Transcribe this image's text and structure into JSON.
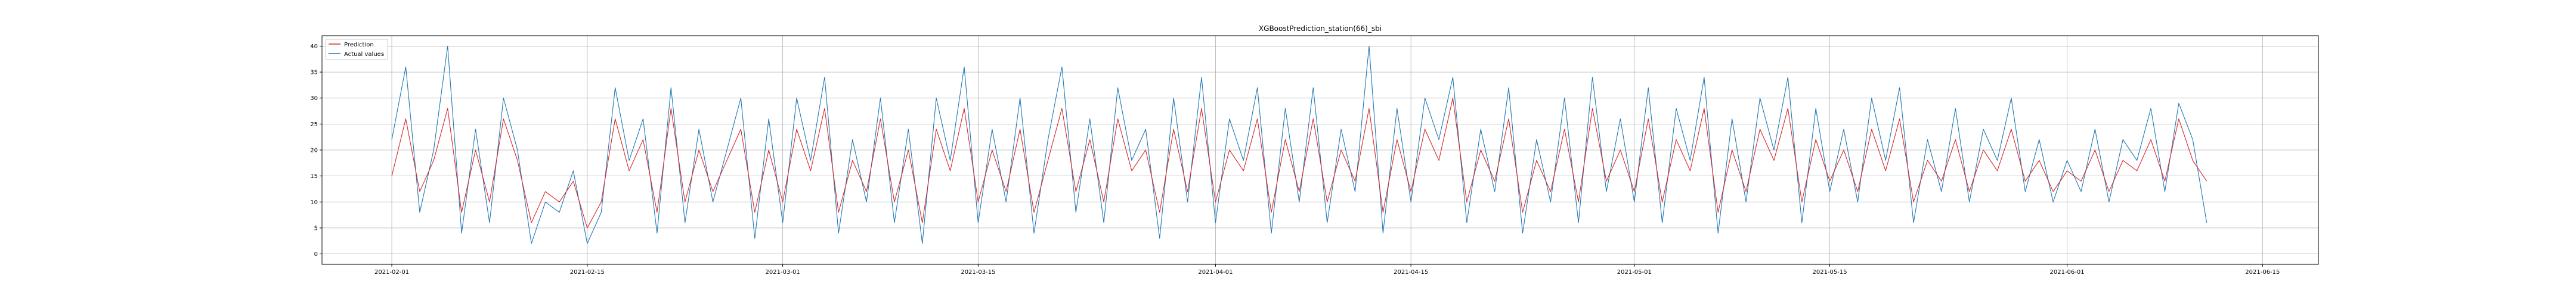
{
  "chart_data": {
    "type": "line",
    "title": "XGBoostPrediction_station(66)_sbi",
    "xlabel": "",
    "ylabel": "",
    "xlim": [
      "2021-01-27",
      "2021-06-19"
    ],
    "ylim": [
      -2,
      42
    ],
    "grid": true,
    "legend_position": "top-left",
    "x_ticks": [
      "2021-02-01",
      "2021-02-15",
      "2021-03-01",
      "2021-03-15",
      "2021-04-01",
      "2021-04-15",
      "2021-05-01",
      "2021-05-15",
      "2021-06-01",
      "2021-06-15"
    ],
    "y_ticks": [
      0,
      5,
      10,
      15,
      20,
      25,
      30,
      35,
      40
    ],
    "series": [
      {
        "name": "Prediction",
        "color": "#d62728",
        "x": [
          "2021-02-01",
          "2021-02-02",
          "2021-02-03",
          "2021-02-04",
          "2021-02-05",
          "2021-02-06",
          "2021-02-07",
          "2021-02-08",
          "2021-02-09",
          "2021-02-10",
          "2021-02-11",
          "2021-02-12",
          "2021-02-13",
          "2021-02-14",
          "2021-02-15",
          "2021-02-16",
          "2021-02-17",
          "2021-02-18",
          "2021-02-19",
          "2021-02-20",
          "2021-02-21",
          "2021-02-22",
          "2021-02-23",
          "2021-02-24",
          "2021-02-25",
          "2021-02-26",
          "2021-02-27",
          "2021-02-28",
          "2021-03-01",
          "2021-03-02",
          "2021-03-03",
          "2021-03-04",
          "2021-03-05",
          "2021-03-06",
          "2021-03-07",
          "2021-03-08",
          "2021-03-09",
          "2021-03-10",
          "2021-03-11",
          "2021-03-12",
          "2021-03-13",
          "2021-03-14",
          "2021-03-15",
          "2021-03-16",
          "2021-03-17",
          "2021-03-18",
          "2021-03-19",
          "2021-03-20",
          "2021-03-21",
          "2021-03-22",
          "2021-03-23",
          "2021-03-24",
          "2021-03-25",
          "2021-03-26",
          "2021-03-27",
          "2021-03-28",
          "2021-03-29",
          "2021-03-30",
          "2021-03-31",
          "2021-04-01",
          "2021-04-02",
          "2021-04-03",
          "2021-04-04",
          "2021-04-05",
          "2021-04-06",
          "2021-04-07",
          "2021-04-08",
          "2021-04-09",
          "2021-04-10",
          "2021-04-11",
          "2021-04-12",
          "2021-04-13",
          "2021-04-14",
          "2021-04-15",
          "2021-04-16",
          "2021-04-17",
          "2021-04-18",
          "2021-04-19",
          "2021-04-20",
          "2021-04-21",
          "2021-04-22",
          "2021-04-23",
          "2021-04-24",
          "2021-04-25",
          "2021-04-26",
          "2021-04-27",
          "2021-04-28",
          "2021-04-29",
          "2021-04-30",
          "2021-05-01",
          "2021-05-02",
          "2021-05-03",
          "2021-05-04",
          "2021-05-05",
          "2021-05-06",
          "2021-05-07",
          "2021-05-08",
          "2021-05-09",
          "2021-05-10",
          "2021-05-11",
          "2021-05-12",
          "2021-05-13",
          "2021-05-14",
          "2021-05-15",
          "2021-05-16",
          "2021-05-17",
          "2021-05-18",
          "2021-05-19",
          "2021-05-20",
          "2021-05-21",
          "2021-05-22",
          "2021-05-23",
          "2021-05-24",
          "2021-05-25",
          "2021-05-26",
          "2021-05-27",
          "2021-05-28",
          "2021-05-29",
          "2021-05-30",
          "2021-05-31",
          "2021-06-01",
          "2021-06-02",
          "2021-06-03",
          "2021-06-04",
          "2021-06-05",
          "2021-06-06",
          "2021-06-07",
          "2021-06-08",
          "2021-06-09",
          "2021-06-10",
          "2021-06-11"
        ],
        "values": [
          15,
          26,
          12,
          18,
          28,
          8,
          20,
          10,
          26,
          18,
          6,
          12,
          10,
          14,
          5,
          10,
          26,
          16,
          22,
          8,
          28,
          10,
          20,
          12,
          18,
          24,
          8,
          20,
          10,
          24,
          16,
          28,
          8,
          18,
          12,
          26,
          10,
          20,
          6,
          24,
          16,
          28,
          10,
          20,
          12,
          24,
          8,
          18,
          28,
          12,
          22,
          10,
          26,
          16,
          20,
          8,
          24,
          12,
          28,
          10,
          20,
          16,
          26,
          8,
          22,
          12,
          26,
          10,
          20,
          14,
          28,
          8,
          22,
          12,
          24,
          18,
          30,
          10,
          20,
          14,
          26,
          8,
          18,
          12,
          24,
          10,
          28,
          14,
          20,
          12,
          26,
          10,
          22,
          16,
          28,
          8,
          20,
          12,
          24,
          18,
          28,
          10,
          22,
          14,
          20,
          12,
          24,
          16,
          26,
          10,
          18,
          14,
          22,
          12,
          20,
          16,
          24,
          14,
          18,
          12,
          16,
          14,
          20,
          12,
          18,
          16,
          22,
          14,
          26,
          18,
          14
        ]
      },
      {
        "name": "Actual values",
        "color": "#1f77b4",
        "x": [
          "2021-02-01",
          "2021-02-02",
          "2021-02-03",
          "2021-02-04",
          "2021-02-05",
          "2021-02-06",
          "2021-02-07",
          "2021-02-08",
          "2021-02-09",
          "2021-02-10",
          "2021-02-11",
          "2021-02-12",
          "2021-02-13",
          "2021-02-14",
          "2021-02-15",
          "2021-02-16",
          "2021-02-17",
          "2021-02-18",
          "2021-02-19",
          "2021-02-20",
          "2021-02-21",
          "2021-02-22",
          "2021-02-23",
          "2021-02-24",
          "2021-02-25",
          "2021-02-26",
          "2021-02-27",
          "2021-02-28",
          "2021-03-01",
          "2021-03-02",
          "2021-03-03",
          "2021-03-04",
          "2021-03-05",
          "2021-03-06",
          "2021-03-07",
          "2021-03-08",
          "2021-03-09",
          "2021-03-10",
          "2021-03-11",
          "2021-03-12",
          "2021-03-13",
          "2021-03-14",
          "2021-03-15",
          "2021-03-16",
          "2021-03-17",
          "2021-03-18",
          "2021-03-19",
          "2021-03-20",
          "2021-03-21",
          "2021-03-22",
          "2021-03-23",
          "2021-03-24",
          "2021-03-25",
          "2021-03-26",
          "2021-03-27",
          "2021-03-28",
          "2021-03-29",
          "2021-03-30",
          "2021-03-31",
          "2021-04-01",
          "2021-04-02",
          "2021-04-03",
          "2021-04-04",
          "2021-04-05",
          "2021-04-06",
          "2021-04-07",
          "2021-04-08",
          "2021-04-09",
          "2021-04-10",
          "2021-04-11",
          "2021-04-12",
          "2021-04-13",
          "2021-04-14",
          "2021-04-15",
          "2021-04-16",
          "2021-04-17",
          "2021-04-18",
          "2021-04-19",
          "2021-04-20",
          "2021-04-21",
          "2021-04-22",
          "2021-04-23",
          "2021-04-24",
          "2021-04-25",
          "2021-04-26",
          "2021-04-27",
          "2021-04-28",
          "2021-04-29",
          "2021-04-30",
          "2021-05-01",
          "2021-05-02",
          "2021-05-03",
          "2021-05-04",
          "2021-05-05",
          "2021-05-06",
          "2021-05-07",
          "2021-05-08",
          "2021-05-09",
          "2021-05-10",
          "2021-05-11",
          "2021-05-12",
          "2021-05-13",
          "2021-05-14",
          "2021-05-15",
          "2021-05-16",
          "2021-05-17",
          "2021-05-18",
          "2021-05-19",
          "2021-05-20",
          "2021-05-21",
          "2021-05-22",
          "2021-05-23",
          "2021-05-24",
          "2021-05-25",
          "2021-05-26",
          "2021-05-27",
          "2021-05-28",
          "2021-05-29",
          "2021-05-30",
          "2021-05-31",
          "2021-06-01",
          "2021-06-02",
          "2021-06-03",
          "2021-06-04",
          "2021-06-05",
          "2021-06-06",
          "2021-06-07",
          "2021-06-08",
          "2021-06-09",
          "2021-06-10",
          "2021-06-11"
        ],
        "values": [
          22,
          36,
          8,
          20,
          40,
          4,
          24,
          6,
          30,
          20,
          2,
          10,
          8,
          16,
          2,
          8,
          32,
          18,
          26,
          4,
          32,
          6,
          24,
          10,
          20,
          30,
          3,
          26,
          6,
          30,
          18,
          34,
          4,
          22,
          10,
          30,
          6,
          24,
          2,
          30,
          18,
          36,
          6,
          24,
          10,
          30,
          4,
          22,
          36,
          8,
          26,
          6,
          32,
          18,
          24,
          3,
          30,
          10,
          34,
          6,
          26,
          18,
          32,
          4,
          28,
          10,
          32,
          6,
          24,
          12,
          40,
          4,
          28,
          10,
          30,
          22,
          34,
          6,
          24,
          12,
          32,
          4,
          22,
          10,
          30,
          6,
          34,
          12,
          26,
          10,
          32,
          6,
          28,
          18,
          34,
          4,
          26,
          10,
          30,
          20,
          34,
          6,
          28,
          12,
          24,
          10,
          30,
          18,
          32,
          6,
          22,
          12,
          28,
          10,
          24,
          18,
          30,
          12,
          22,
          10,
          18,
          12,
          24,
          10,
          22,
          18,
          28,
          12,
          29,
          22,
          6
        ]
      }
    ]
  }
}
